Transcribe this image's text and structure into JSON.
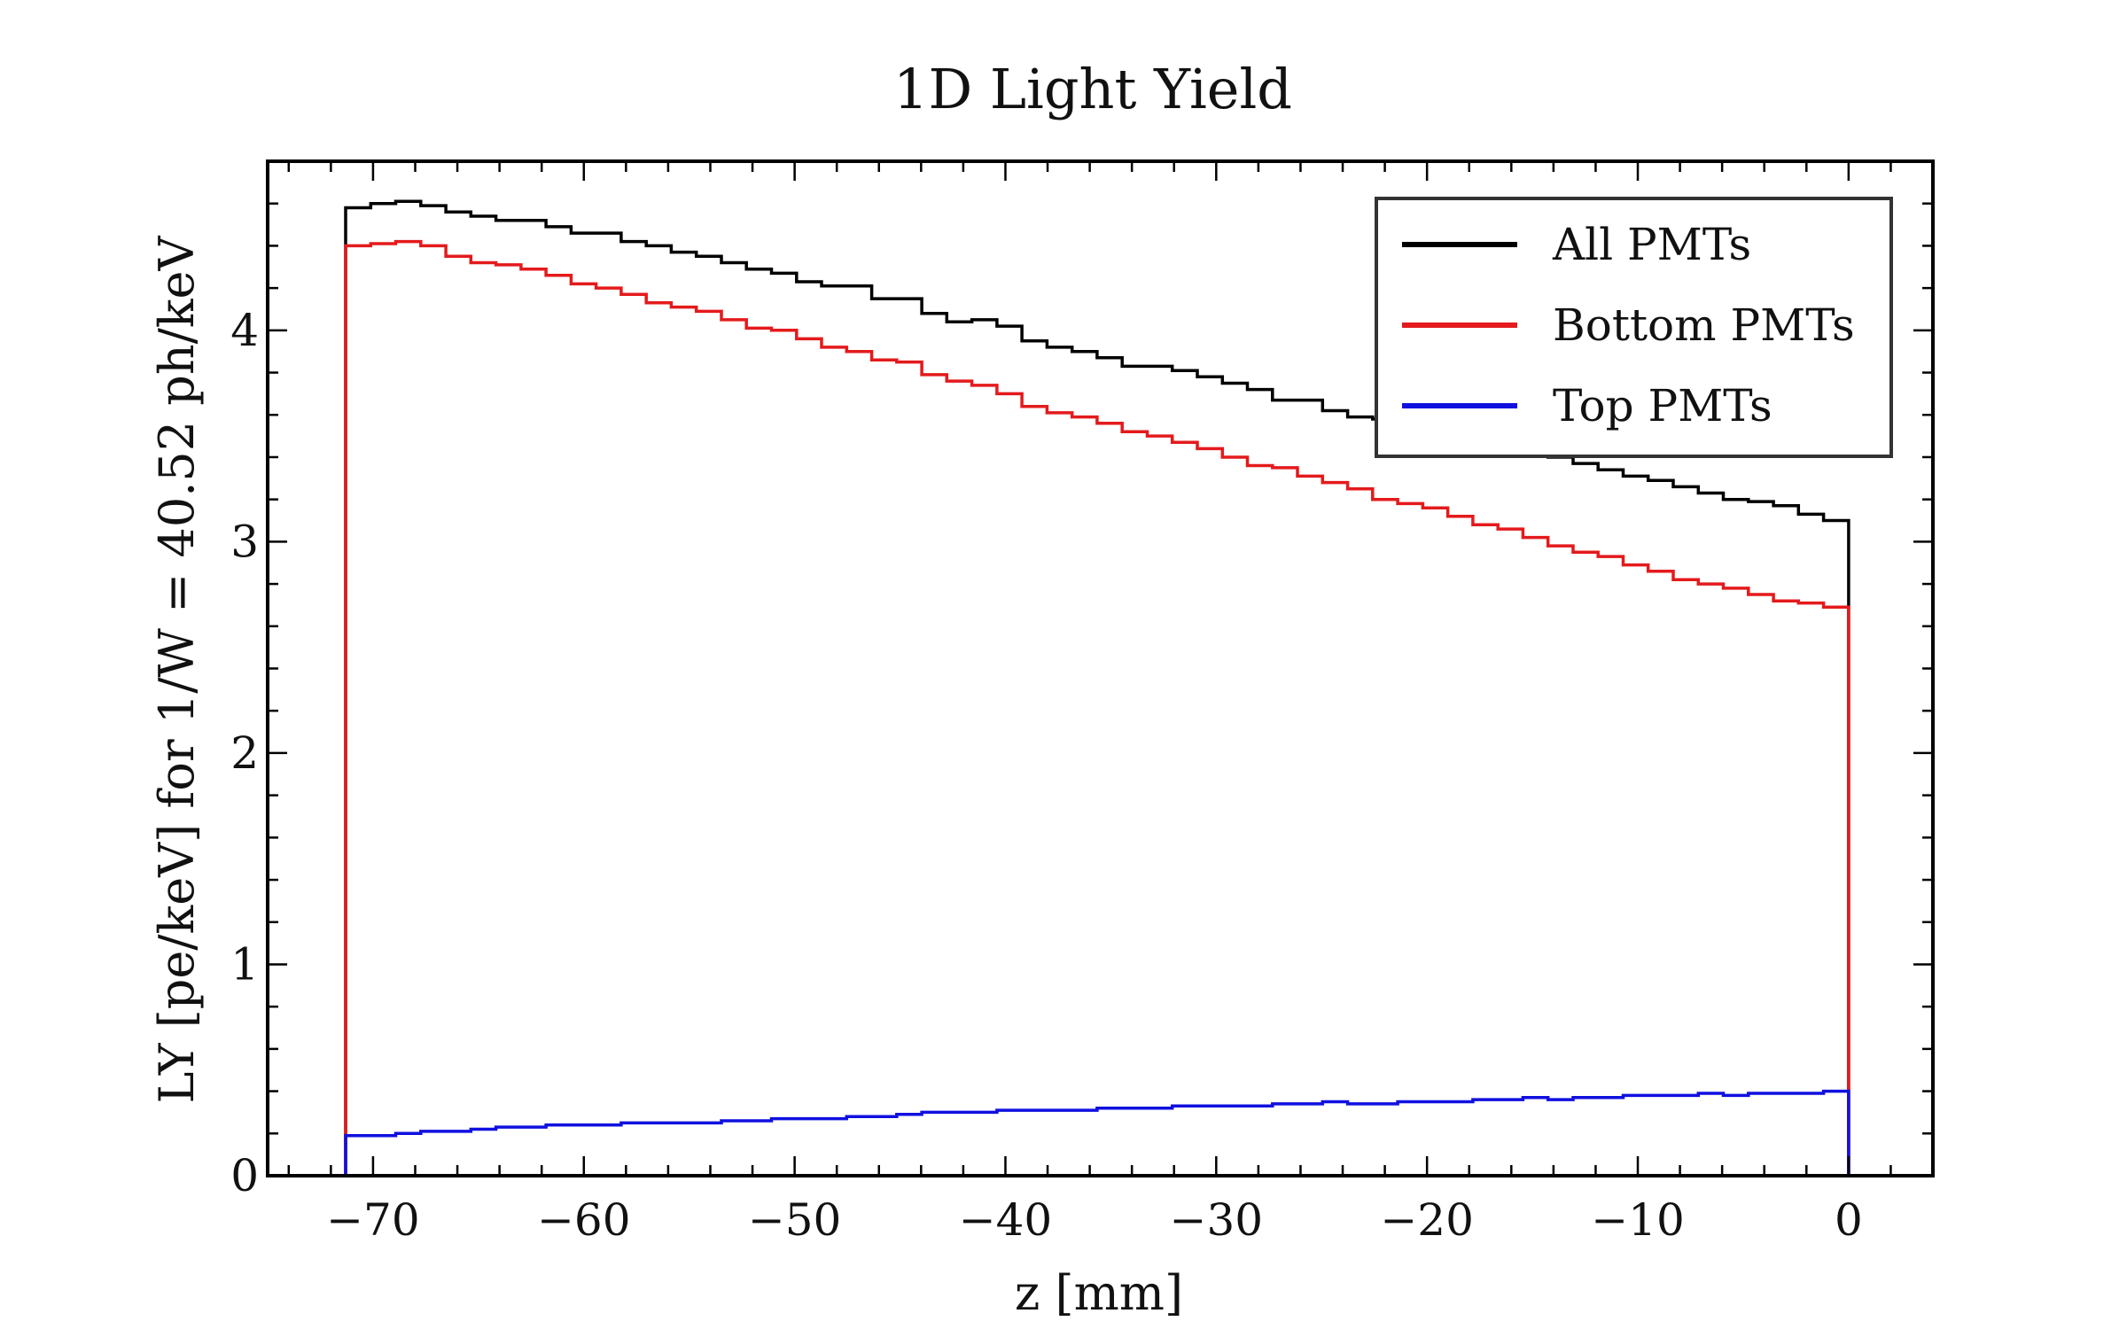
{
  "chart_data": {
    "type": "line",
    "title": "1D Light Yield",
    "xlabel": "z [mm]",
    "ylabel": "LY [pe/keV] for 1/W = 40.52 ph/keV",
    "xlim": [
      -75,
      4
    ],
    "ylim": [
      0,
      4.8
    ],
    "xticks": [
      {
        "value": -70,
        "label": "−70"
      },
      {
        "value": -60,
        "label": "−60"
      },
      {
        "value": -50,
        "label": "−50"
      },
      {
        "value": -40,
        "label": "−40"
      },
      {
        "value": -30,
        "label": "−30"
      },
      {
        "value": -20,
        "label": "−20"
      },
      {
        "value": -10,
        "label": "−10"
      },
      {
        "value": 0,
        "label": "0"
      }
    ],
    "yticks": [
      {
        "value": 0,
        "label": "0"
      },
      {
        "value": 1,
        "label": "1"
      },
      {
        "value": 2,
        "label": "2"
      },
      {
        "value": 3,
        "label": "3"
      },
      {
        "value": 4,
        "label": "4"
      }
    ],
    "grid": false,
    "legend_position": "top-right",
    "histogram": {
      "z_min": -71.3,
      "z_max": 0.0,
      "bins": 60
    },
    "series": [
      {
        "name": "All PMTs",
        "color": "#000000",
        "values": [
          4.58,
          4.6,
          4.61,
          4.59,
          4.56,
          4.54,
          4.52,
          4.52,
          4.49,
          4.46,
          4.46,
          4.42,
          4.4,
          4.37,
          4.35,
          4.32,
          4.29,
          4.27,
          4.23,
          4.21,
          4.21,
          4.15,
          4.15,
          4.08,
          4.04,
          4.05,
          4.02,
          3.95,
          3.92,
          3.9,
          3.87,
          3.83,
          3.83,
          3.81,
          3.78,
          3.75,
          3.72,
          3.67,
          3.67,
          3.62,
          3.59,
          3.58,
          3.55,
          3.52,
          3.51,
          3.48,
          3.44,
          3.42,
          3.4,
          3.37,
          3.34,
          3.31,
          3.29,
          3.26,
          3.23,
          3.2,
          3.19,
          3.17,
          3.13,
          3.1
        ]
      },
      {
        "name": "Bottom PMTs",
        "color": "#e41a1c",
        "values": [
          4.4,
          4.41,
          4.42,
          4.4,
          4.35,
          4.32,
          4.31,
          4.29,
          4.26,
          4.22,
          4.2,
          4.17,
          4.13,
          4.11,
          4.09,
          4.05,
          4.01,
          4.0,
          3.96,
          3.92,
          3.9,
          3.86,
          3.85,
          3.79,
          3.76,
          3.74,
          3.7,
          3.64,
          3.61,
          3.59,
          3.56,
          3.52,
          3.5,
          3.47,
          3.44,
          3.4,
          3.36,
          3.35,
          3.31,
          3.28,
          3.25,
          3.2,
          3.18,
          3.16,
          3.12,
          3.08,
          3.06,
          3.02,
          2.98,
          2.95,
          2.93,
          2.89,
          2.86,
          2.82,
          2.8,
          2.78,
          2.75,
          2.72,
          2.71,
          2.69
        ]
      },
      {
        "name": "Top PMTs",
        "color": "#1010e0",
        "values": [
          0.19,
          0.19,
          0.2,
          0.21,
          0.21,
          0.22,
          0.23,
          0.23,
          0.24,
          0.24,
          0.24,
          0.25,
          0.25,
          0.25,
          0.25,
          0.26,
          0.26,
          0.27,
          0.27,
          0.27,
          0.28,
          0.28,
          0.29,
          0.3,
          0.3,
          0.3,
          0.31,
          0.31,
          0.31,
          0.31,
          0.32,
          0.32,
          0.32,
          0.33,
          0.33,
          0.33,
          0.33,
          0.34,
          0.34,
          0.35,
          0.34,
          0.34,
          0.35,
          0.35,
          0.35,
          0.36,
          0.36,
          0.37,
          0.36,
          0.37,
          0.37,
          0.38,
          0.38,
          0.38,
          0.39,
          0.38,
          0.39,
          0.39,
          0.39,
          0.4
        ]
      }
    ]
  }
}
